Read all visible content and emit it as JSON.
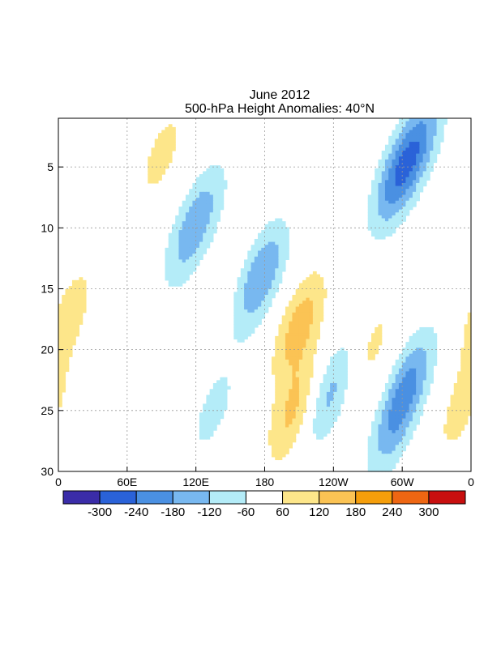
{
  "chart_data": {
    "type": "heatmap",
    "title": "June 2012",
    "subtitle": "500-hPa Height Anomalies: 40°N",
    "x_tick_labels": [
      "0",
      "60E",
      "120E",
      "180",
      "120W",
      "60W",
      "0"
    ],
    "y_tick_labels": [
      "5",
      "10",
      "15",
      "20",
      "25",
      "30"
    ],
    "x_range_deg_east": [
      0,
      360
    ],
    "y_range_day": [
      1,
      30
    ],
    "y_direction": "down",
    "grid": true,
    "colorbar": {
      "position": "bottom",
      "labels": [
        "-300",
        "-240",
        "-180",
        "-120",
        "-60",
        "60",
        "120",
        "180",
        "240",
        "300"
      ],
      "colors": [
        "#3a2ca8",
        "#2a62d8",
        "#4a90e2",
        "#78b8f0",
        "#b4ecf8",
        "#ffffff",
        "#fde68a",
        "#fbc354",
        "#f59e0b",
        "#ee6612",
        "#c80f0f"
      ]
    },
    "contour_zero_label": "0",
    "anomaly_centers": [
      {
        "lon": 127,
        "day": 8.5,
        "value": -90
      },
      {
        "lon": 90,
        "day": 4,
        "value": 80
      },
      {
        "lon": 177,
        "day": 14,
        "value": -180
      },
      {
        "lon": 210,
        "day": 18,
        "value": 150
      },
      {
        "lon": 206,
        "day": 25,
        "value": 140
      },
      {
        "lon": 237,
        "day": 23.5,
        "value": -150
      },
      {
        "lon": 295,
        "day": 6,
        "value": -180
      },
      {
        "lon": 315,
        "day": 3,
        "value": -150
      },
      {
        "lon": 307,
        "day": 22.5,
        "value": -150
      },
      {
        "lon": 291,
        "day": 26.5,
        "value": -120
      },
      {
        "lon": 10,
        "day": 17,
        "value": 90
      },
      {
        "lon": 135,
        "day": 25,
        "value": -80
      },
      {
        "lon": 112,
        "day": 11,
        "value": -100
      },
      {
        "lon": 272,
        "day": 20,
        "value": 80
      },
      {
        "lon": 350,
        "day": 25,
        "value": 80
      }
    ]
  }
}
